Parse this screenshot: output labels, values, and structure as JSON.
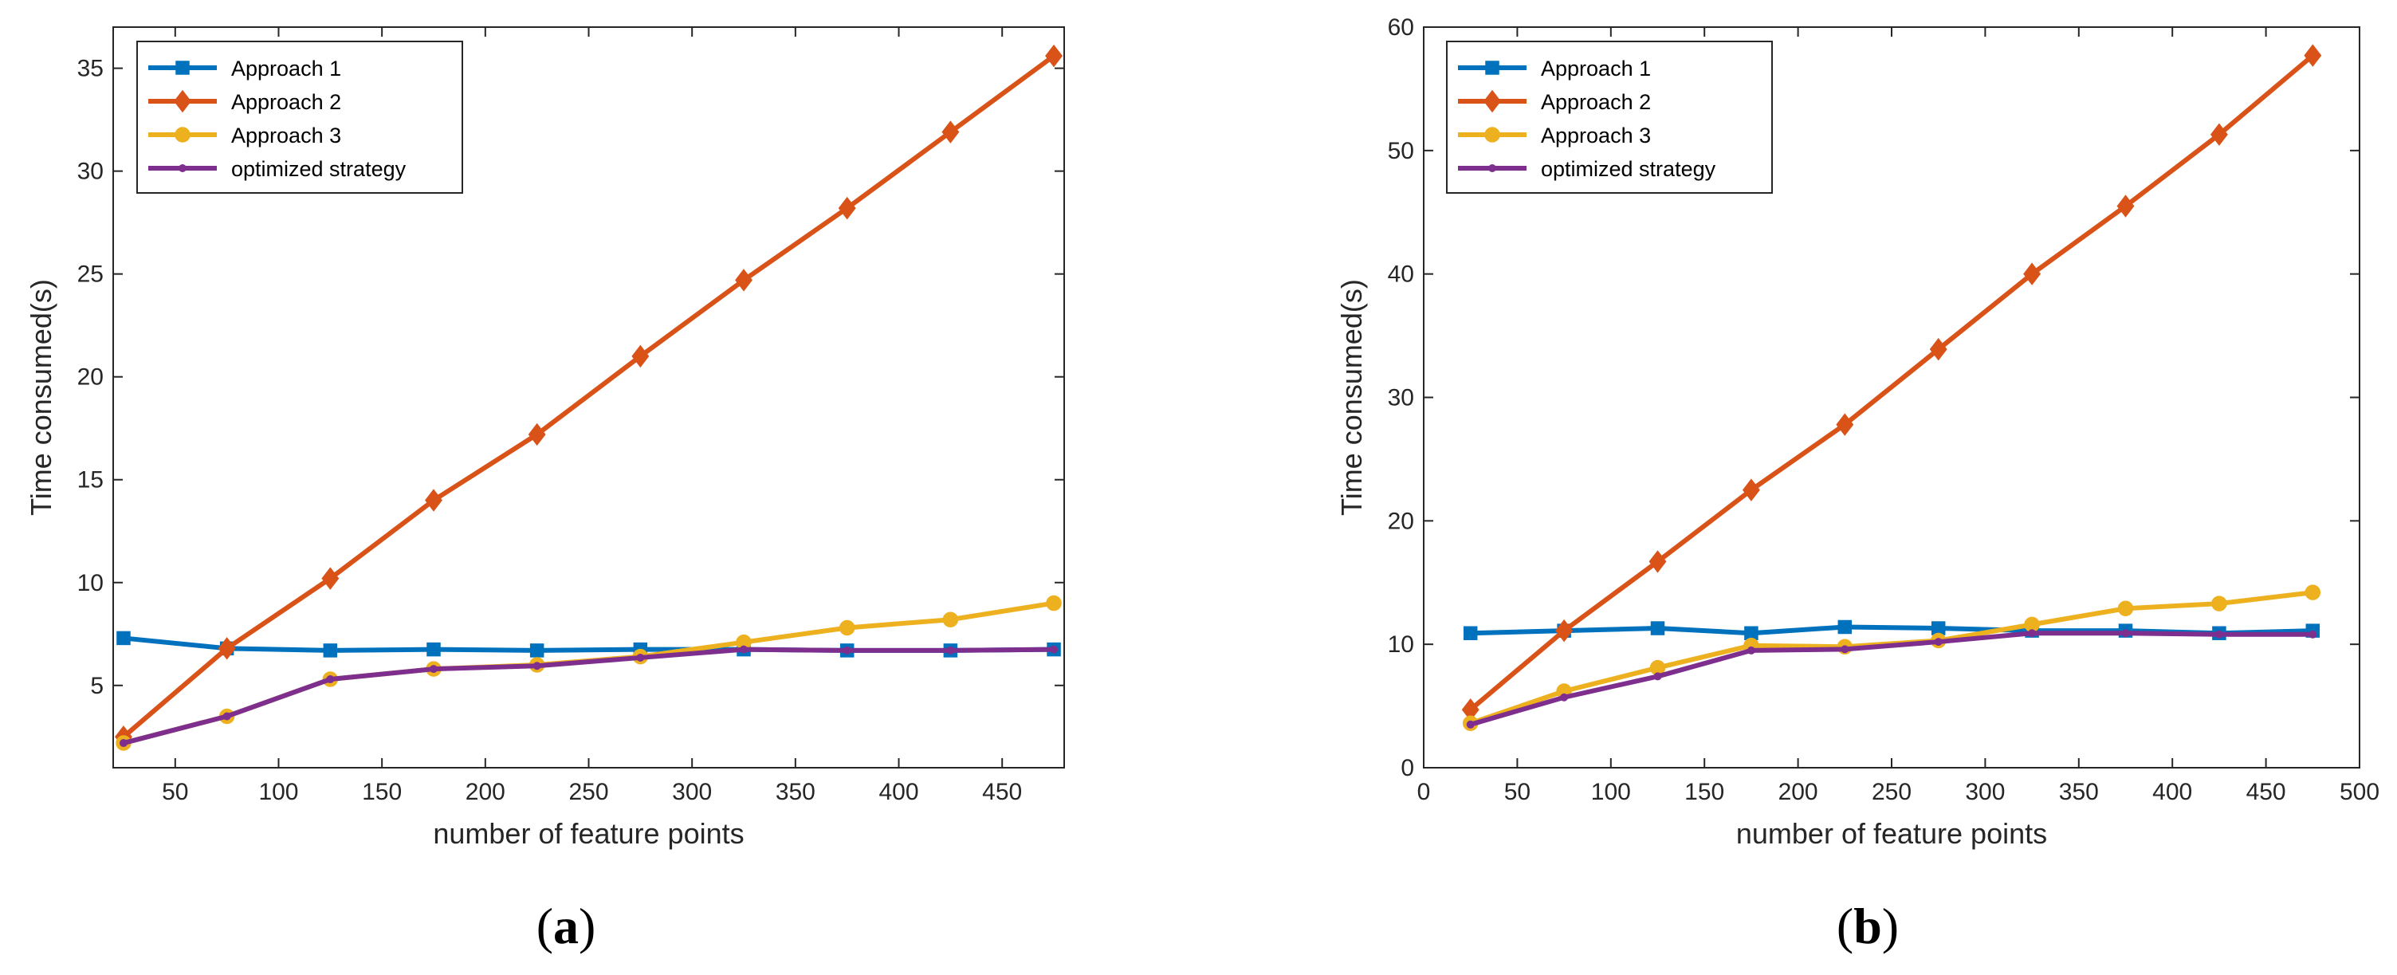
{
  "chart_data": [
    {
      "type": "line",
      "caption_letter": "a",
      "xlabel": "number of feature points",
      "ylabel": "Time consumed(s)",
      "xlim": [
        20,
        480
      ],
      "ylim": [
        1,
        37
      ],
      "xticks": [
        50,
        100,
        150,
        200,
        250,
        300,
        350,
        400,
        450
      ],
      "yticks": [
        5,
        10,
        15,
        20,
        25,
        30,
        35
      ],
      "x": [
        25,
        75,
        125,
        175,
        225,
        275,
        325,
        375,
        425,
        475
      ],
      "series": [
        {
          "name": "Approach 1",
          "color": "#0072BD",
          "marker": "square",
          "values": [
            7.3,
            6.8,
            6.7,
            6.75,
            6.7,
            6.75,
            6.75,
            6.7,
            6.7,
            6.75
          ]
        },
        {
          "name": "Approach 2",
          "color": "#D95319",
          "marker": "diamond",
          "values": [
            2.5,
            6.8,
            10.2,
            14.0,
            17.2,
            21.0,
            24.7,
            28.2,
            31.9,
            35.6
          ]
        },
        {
          "name": "Approach 3",
          "color": "#EDB120",
          "marker": "circle",
          "values": [
            2.2,
            3.5,
            5.3,
            5.8,
            6.0,
            6.4,
            7.1,
            7.8,
            8.2,
            9.0
          ]
        },
        {
          "name": "optimized strategy",
          "color": "#7E2F8E",
          "marker": "dot",
          "values": [
            2.2,
            3.5,
            5.3,
            5.8,
            5.95,
            6.35,
            6.75,
            6.7,
            6.7,
            6.75
          ]
        }
      ]
    },
    {
      "type": "line",
      "caption_letter": "b",
      "xlabel": "number of feature points",
      "ylabel": "Time consumed(s)",
      "xlim": [
        0,
        500
      ],
      "ylim": [
        0,
        60
      ],
      "xticks": [
        0,
        50,
        100,
        150,
        200,
        250,
        300,
        350,
        400,
        450,
        500
      ],
      "yticks": [
        0,
        10,
        20,
        30,
        40,
        50,
        60
      ],
      "x": [
        25,
        75,
        125,
        175,
        225,
        275,
        325,
        375,
        425,
        475
      ],
      "series": [
        {
          "name": "Approach 1",
          "color": "#0072BD",
          "marker": "square",
          "values": [
            10.9,
            11.1,
            11.3,
            10.9,
            11.4,
            11.3,
            11.1,
            11.1,
            10.9,
            11.1
          ]
        },
        {
          "name": "Approach 2",
          "color": "#D95319",
          "marker": "diamond",
          "values": [
            4.7,
            11.1,
            16.7,
            22.5,
            27.8,
            33.9,
            40.0,
            45.5,
            51.3,
            57.7
          ]
        },
        {
          "name": "Approach 3",
          "color": "#EDB120",
          "marker": "circle",
          "values": [
            3.6,
            6.2,
            8.1,
            9.9,
            9.8,
            10.3,
            11.6,
            12.9,
            13.3,
            14.2
          ]
        },
        {
          "name": "optimized strategy",
          "color": "#7E2F8E",
          "marker": "dot",
          "values": [
            3.5,
            5.7,
            7.4,
            9.5,
            9.6,
            10.2,
            10.9,
            10.9,
            10.8,
            10.8
          ]
        }
      ]
    }
  ]
}
